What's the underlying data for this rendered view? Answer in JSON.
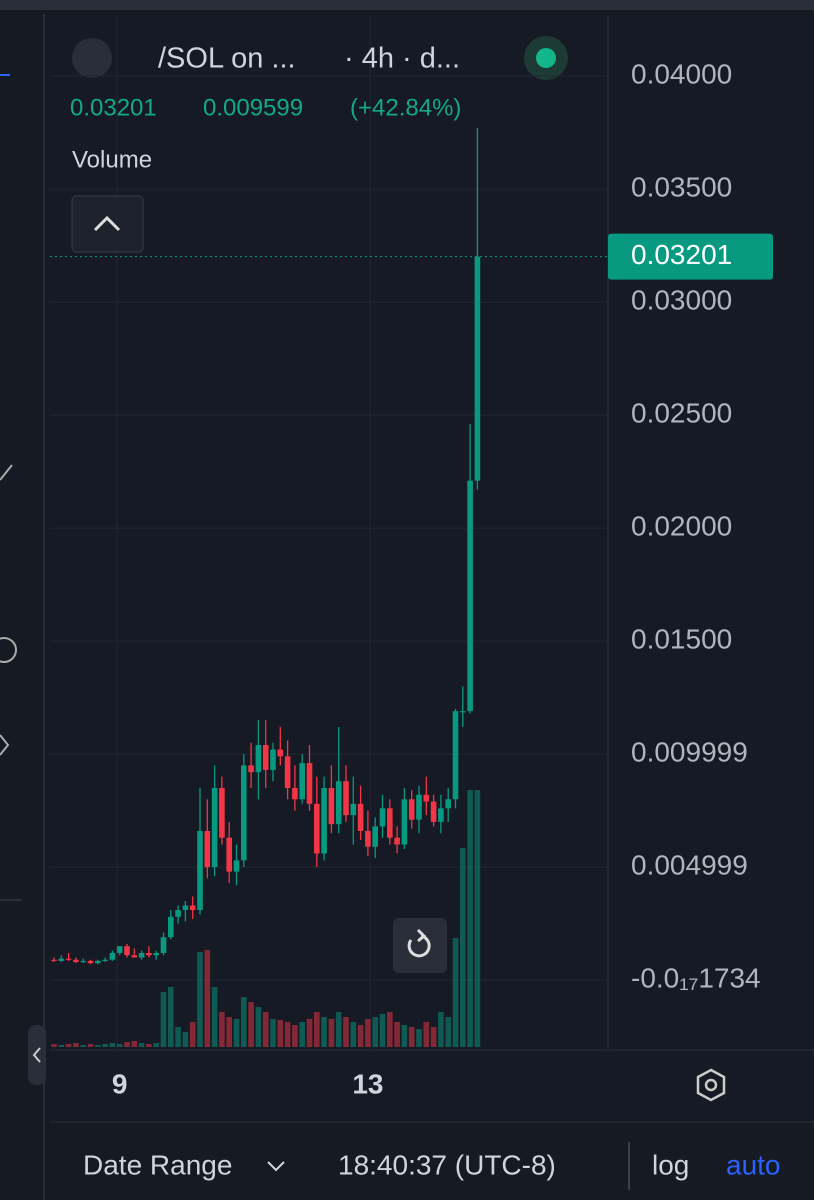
{
  "chart_data": {
    "type": "candlestick",
    "symbol": "/SOL on ...",
    "interval": "· 4h · d...",
    "change": 0.009599,
    "change_pct": {
      "value": 42.84,
      "label": "(+42.84%)"
    },
    "volume_label": "Volume",
    "categories": [
      null,
      null,
      null,
      null,
      null,
      null,
      null,
      null,
      null,
      "9",
      null,
      null,
      null,
      null,
      null,
      null,
      null,
      null,
      null,
      null,
      null,
      null,
      null,
      null,
      null,
      null,
      null,
      null,
      null,
      null,
      null,
      null,
      null,
      null,
      null,
      null,
      null,
      null,
      null,
      null,
      null,
      null,
      null,
      "13",
      null,
      null,
      null,
      null,
      null,
      null,
      null,
      null,
      null,
      null,
      null,
      null,
      null,
      null,
      null
    ],
    "open": [
      0.0009,
      0.00085,
      0.00095,
      0.0009,
      0.0008,
      0.00085,
      0.00075,
      0.00085,
      0.0009,
      0.0012,
      0.0015,
      0.0011,
      0.001,
      0.0012,
      0.0011,
      0.0012,
      0.0019,
      0.0028,
      0.0031,
      0.0033,
      0.0031,
      0.0066,
      0.005,
      0.0085,
      0.0063,
      0.0048,
      0.0053,
      0.0095,
      0.0092,
      0.0104,
      0.0093,
      0.0102,
      0.0099,
      0.0085,
      0.008,
      0.0096,
      0.0078,
      0.0056,
      0.0085,
      0.0069,
      0.0088,
      0.0073,
      0.0078,
      0.0066,
      0.0059,
      0.0068,
      0.0076,
      0.0063,
      0.006,
      0.008,
      0.0071,
      0.0082,
      0.0079,
      0.007,
      0.0076,
      0.008,
      0.0119,
      0.0119,
      0.0221
    ],
    "high": [
      0.001,
      0.0011,
      0.0012,
      0.001,
      0.00095,
      0.0009,
      0.0009,
      0.001,
      0.0013,
      0.0015,
      0.0016,
      0.0014,
      0.0013,
      0.0015,
      0.0013,
      0.0021,
      0.0031,
      0.0033,
      0.0035,
      0.0037,
      0.0085,
      0.008,
      0.0095,
      0.009,
      0.007,
      0.006,
      0.01,
      0.0105,
      0.0115,
      0.0115,
      0.0105,
      0.0112,
      0.0106,
      0.0095,
      0.01,
      0.0104,
      0.009,
      0.009,
      0.0095,
      0.0112,
      0.0095,
      0.009,
      0.0086,
      0.0075,
      0.0072,
      0.0082,
      0.008,
      0.0068,
      0.0085,
      0.0084,
      0.0086,
      0.009,
      0.0082,
      0.0082,
      0.0085,
      0.012,
      0.013,
      0.0246,
      0.0377
    ],
    "low": [
      0.0008,
      0.0008,
      0.00085,
      0.00075,
      0.00075,
      0.0007,
      0.0007,
      0.0008,
      0.00085,
      0.0011,
      0.001,
      0.001,
      0.0009,
      0.001,
      0.0009,
      0.0011,
      0.0018,
      0.0025,
      0.0026,
      0.0027,
      0.0029,
      0.0045,
      0.0046,
      0.006,
      0.0043,
      0.0042,
      0.005,
      0.0085,
      0.008,
      0.0085,
      0.0088,
      0.0095,
      0.008,
      0.0075,
      0.0078,
      0.0075,
      0.005,
      0.0053,
      0.0065,
      0.0065,
      0.007,
      0.006,
      0.0062,
      0.0055,
      0.0054,
      0.0063,
      0.006,
      0.0056,
      0.0058,
      0.0067,
      0.0065,
      0.0073,
      0.0068,
      0.0065,
      0.007,
      0.0076,
      0.0112,
      0.0118,
      0.0217
    ],
    "close": [
      0.00085,
      0.00095,
      0.0009,
      0.0008,
      0.00085,
      0.00075,
      0.00085,
      0.0009,
      0.0012,
      0.0015,
      0.0011,
      0.001,
      0.0012,
      0.0011,
      0.0012,
      0.0019,
      0.0028,
      0.0031,
      0.0033,
      0.0031,
      0.0066,
      0.005,
      0.0085,
      0.0063,
      0.0048,
      0.0053,
      0.0095,
      0.0092,
      0.0104,
      0.0093,
      0.0102,
      0.0099,
      0.0085,
      0.008,
      0.0096,
      0.0078,
      0.0056,
      0.0085,
      0.0069,
      0.0088,
      0.0073,
      0.0078,
      0.0066,
      0.0059,
      0.0068,
      0.0076,
      0.0063,
      0.006,
      0.008,
      0.0071,
      0.0082,
      0.0079,
      0.007,
      0.0076,
      0.008,
      0.0119,
      0.0119,
      0.0221,
      0.03201
    ],
    "volume": [
      3,
      2,
      3,
      4,
      2,
      3,
      2,
      3,
      4,
      3,
      5,
      6,
      4,
      3,
      4,
      55,
      60,
      20,
      15,
      25,
      95,
      97,
      60,
      35,
      30,
      28,
      50,
      45,
      40,
      35,
      28,
      27,
      25,
      22,
      25,
      28,
      35,
      30,
      28,
      35,
      30,
      25,
      22,
      28,
      30,
      33,
      35,
      25,
      22,
      20,
      18,
      25,
      20,
      35,
      30,
      109,
      199,
      257,
      257
    ],
    "up_color": "#089981",
    "down_color": "#f23645",
    "ylim": [
      -0.00296,
      0.04248
    ],
    "yticks": [
      {
        "value": 0.04,
        "label": "0.04000"
      },
      {
        "value": 0.035,
        "label": "0.03500"
      },
      {
        "value": 0.03,
        "label": "0.03000"
      },
      {
        "value": 0.025,
        "label": "0.02500"
      },
      {
        "value": 0.02,
        "label": "0.02000"
      },
      {
        "value": 0.015,
        "label": "0.01500"
      },
      0.009999,
      0.004999,
      {
        "value": -1.734e-18,
        "label": "-0.0₁₇1734"
      }
    ],
    "grid": true
  },
  "footer": {
    "date_range": "Date Range",
    "time": "18:40:37 (UTC-8)",
    "log": "log",
    "auto": "auto"
  }
}
